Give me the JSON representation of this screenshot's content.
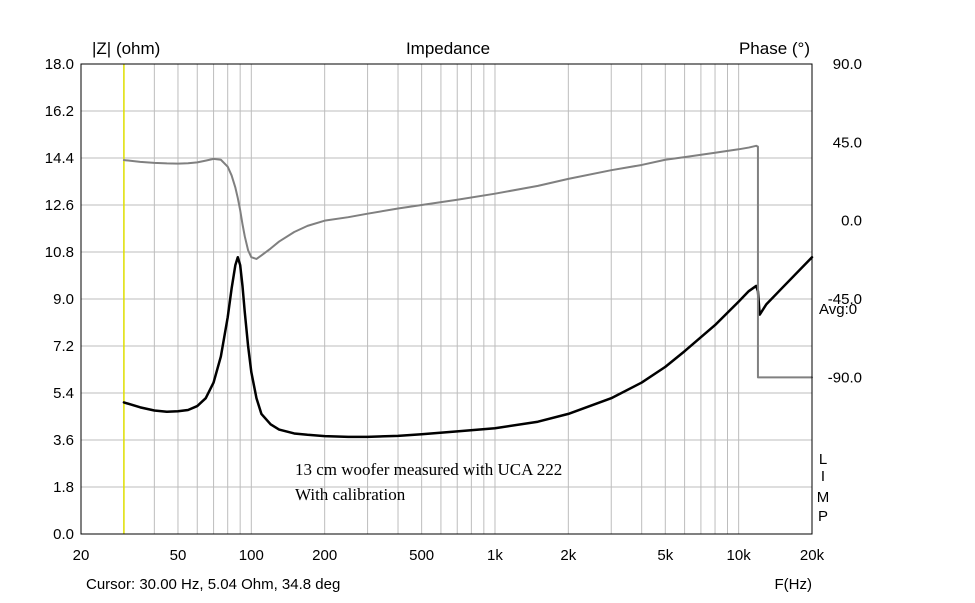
{
  "chart_data": {
    "type": "line",
    "title": "Impedance",
    "ylabel_left": "|Z| (ohm)",
    "ylabel_right": "Phase (°)",
    "xlabel": "F(Hz)",
    "xscale": "log",
    "xlim": [
      20,
      20000
    ],
    "ylim_left": [
      0,
      18
    ],
    "ylim_right": [
      -180,
      90
    ],
    "x_ticks": [
      20,
      50,
      100,
      200,
      500,
      1000,
      2000,
      5000,
      10000,
      20000
    ],
    "x_tick_labels": [
      "20",
      "50",
      "100",
      "200",
      "500",
      "1k",
      "2k",
      "5k",
      "10k",
      "20k"
    ],
    "y_ticks_left": [
      0,
      1.8,
      3.6,
      5.4,
      7.2,
      9,
      10.8,
      12.6,
      14.4,
      16.2,
      18
    ],
    "y_tick_labels_left": [
      "0.0",
      "1.8",
      "3.6",
      "5.4",
      "7.2",
      "9.0",
      "10.8",
      "12.6",
      "14.4",
      "16.2",
      "18.0"
    ],
    "y_ticks_right": [
      90,
      45,
      0,
      -45,
      -90
    ],
    "y_tick_labels_right": [
      "90.0",
      "45.0",
      "0.0",
      "-45.0",
      "-90.0"
    ],
    "right_annotation": "Avg:0",
    "limp_label": [
      "L",
      "I",
      "M",
      "P"
    ],
    "cursor": {
      "x": 30,
      "color": "#e0e000"
    },
    "cursor_readout": "Cursor: 30.00 Hz, 5.04 Ohm, 34.8 deg",
    "annotation_lines": [
      "13 cm woofer measured with UCA 222",
      "With calibration"
    ],
    "series": [
      {
        "name": "Impedance",
        "axis": "left",
        "color": "#000000",
        "x": [
          30,
          35,
          40,
          45,
          50,
          55,
          60,
          65,
          70,
          75,
          80,
          83,
          86,
          88,
          90,
          92,
          94,
          97,
          100,
          105,
          110,
          120,
          130,
          150,
          170,
          200,
          250,
          300,
          400,
          500,
          700,
          1000,
          1500,
          2000,
          3000,
          4000,
          5000,
          6000,
          8000,
          10000,
          11000,
          11800,
          12000,
          12200,
          13000,
          15000,
          20000
        ],
        "values": [
          5.04,
          4.85,
          4.73,
          4.68,
          4.7,
          4.75,
          4.9,
          5.2,
          5.8,
          6.8,
          8.3,
          9.4,
          10.3,
          10.6,
          10.3,
          9.5,
          8.5,
          7.2,
          6.2,
          5.2,
          4.6,
          4.2,
          4.0,
          3.85,
          3.8,
          3.75,
          3.72,
          3.72,
          3.76,
          3.82,
          3.93,
          4.05,
          4.3,
          4.6,
          5.2,
          5.8,
          6.4,
          7.0,
          8.0,
          8.9,
          9.3,
          9.5,
          9.3,
          8.4,
          8.8,
          9.4,
          10.6
        ]
      },
      {
        "name": "Phase",
        "axis": "right",
        "color": "#808080",
        "x": [
          30,
          35,
          40,
          45,
          50,
          55,
          60,
          65,
          70,
          75,
          80,
          83,
          86,
          88,
          90,
          92,
          94,
          97,
          100,
          105,
          110,
          120,
          130,
          150,
          170,
          200,
          250,
          300,
          400,
          500,
          700,
          1000,
          1500,
          2000,
          3000,
          4000,
          5000,
          6000,
          8000,
          10000,
          11000,
          11800,
          12000,
          12000,
          15000,
          20000
        ],
        "values": [
          34.8,
          33.8,
          33.2,
          32.9,
          32.8,
          33.0,
          33.5,
          34.5,
          35.5,
          35.0,
          31.0,
          26.0,
          19.0,
          13.0,
          6.0,
          -2.0,
          -9.0,
          -17.0,
          -21.0,
          -22.0,
          -20.0,
          -16.0,
          -12.0,
          -6.5,
          -3.0,
          0.0,
          2.0,
          4.0,
          7.0,
          9.0,
          12.0,
          15.5,
          20.0,
          24.0,
          29.0,
          32.0,
          35.0,
          36.5,
          39.0,
          41.0,
          42.0,
          43.0,
          42.5,
          -90.0,
          -90.0,
          -90.0
        ]
      }
    ]
  }
}
